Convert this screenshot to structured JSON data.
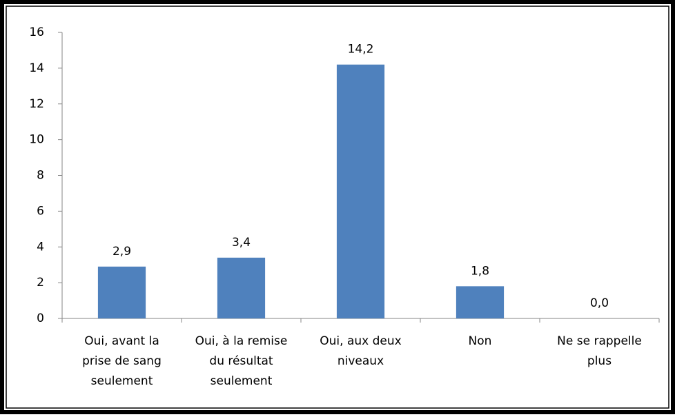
{
  "chart_data": {
    "type": "bar",
    "categories": [
      [
        "Oui, avant la",
        "prise de sang",
        "seulement"
      ],
      [
        "Oui, à la remise",
        "du résultat",
        "seulement"
      ],
      [
        "Oui, aux deux",
        "niveaux"
      ],
      [
        "Non"
      ],
      [
        "Ne se rappelle",
        "plus"
      ]
    ],
    "values": [
      2.9,
      3.4,
      14.2,
      1.8,
      0.0
    ],
    "value_labels": [
      "2,9",
      "3,4",
      "14,2",
      "1,8",
      "0,0"
    ],
    "color": "#4f81bd",
    "ylim": [
      0,
      16
    ],
    "yticks": [
      0,
      2,
      4,
      6,
      8,
      10,
      12,
      14,
      16
    ],
    "grid": false
  }
}
